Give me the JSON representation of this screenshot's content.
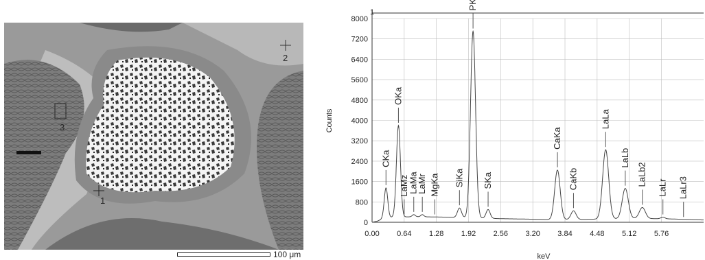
{
  "micrograph": {
    "markers": [
      {
        "label": "1",
        "type": "crosshair"
      },
      {
        "label": "2",
        "type": "crosshair"
      },
      {
        "label": "3",
        "type": "box"
      }
    ],
    "scale_bar": {
      "label": "100 μm"
    }
  },
  "chart_data": {
    "type": "line",
    "title": "1",
    "xlabel": "keV",
    "ylabel": "Counts",
    "xlim": [
      0,
      6.6
    ],
    "ylim": [
      0,
      8000
    ],
    "grid": true,
    "x_ticks": [
      "0.00",
      "0.64",
      "1.28",
      "1.92",
      "2.56",
      "3.20",
      "3.84",
      "4.48",
      "5.12",
      "5.76"
    ],
    "y_ticks": [
      "0",
      "800",
      "1600",
      "2400",
      "3200",
      "4000",
      "4800",
      "5600",
      "6400",
      "7200",
      "8000"
    ],
    "peaks": [
      {
        "label": "CKa",
        "x": 0.277,
        "y": 1350
      },
      {
        "label": "OKa",
        "x": 0.525,
        "y": 3800
      },
      {
        "label": "LaMz",
        "x": 0.64,
        "y": 200
      },
      {
        "label": "LaMa",
        "x": 0.83,
        "y": 300
      },
      {
        "label": "LaMr",
        "x": 1.0,
        "y": 300
      },
      {
        "label": "MgKa",
        "x": 1.25,
        "y": 200
      },
      {
        "label": "SiKa",
        "x": 1.74,
        "y": 560
      },
      {
        "label": "PKa",
        "x": 2.01,
        "y": 7500
      },
      {
        "label": "SKa",
        "x": 2.31,
        "y": 500
      },
      {
        "label": "CaKa",
        "x": 3.69,
        "y": 2050
      },
      {
        "label": "CaKb",
        "x": 4.01,
        "y": 450
      },
      {
        "label": "LaLa",
        "x": 4.65,
        "y": 2850
      },
      {
        "label": "LaLb",
        "x": 5.04,
        "y": 1330
      },
      {
        "label": "LaLb2",
        "x": 5.38,
        "y": 580
      },
      {
        "label": "LaLr",
        "x": 5.79,
        "y": 200
      },
      {
        "label": "LaLr3",
        "x": 6.2,
        "y": 100
      }
    ],
    "spectrum": {
      "baseline": [
        [
          0,
          0
        ],
        [
          0.1,
          40
        ],
        [
          0.2,
          130
        ],
        [
          0.4,
          200
        ],
        [
          0.9,
          220
        ],
        [
          1.5,
          200
        ],
        [
          2.6,
          140
        ],
        [
          3.2,
          120
        ],
        [
          3.6,
          100
        ],
        [
          4.4,
          120
        ],
        [
          5.2,
          150
        ],
        [
          5.8,
          140
        ],
        [
          6.6,
          90
        ]
      ],
      "peak_widths": [
        0.035,
        0.04,
        0.03,
        0.03,
        0.03,
        0.03,
        0.04,
        0.05,
        0.04,
        0.055,
        0.05,
        0.06,
        0.06,
        0.06,
        0.04,
        0.04
      ]
    }
  }
}
